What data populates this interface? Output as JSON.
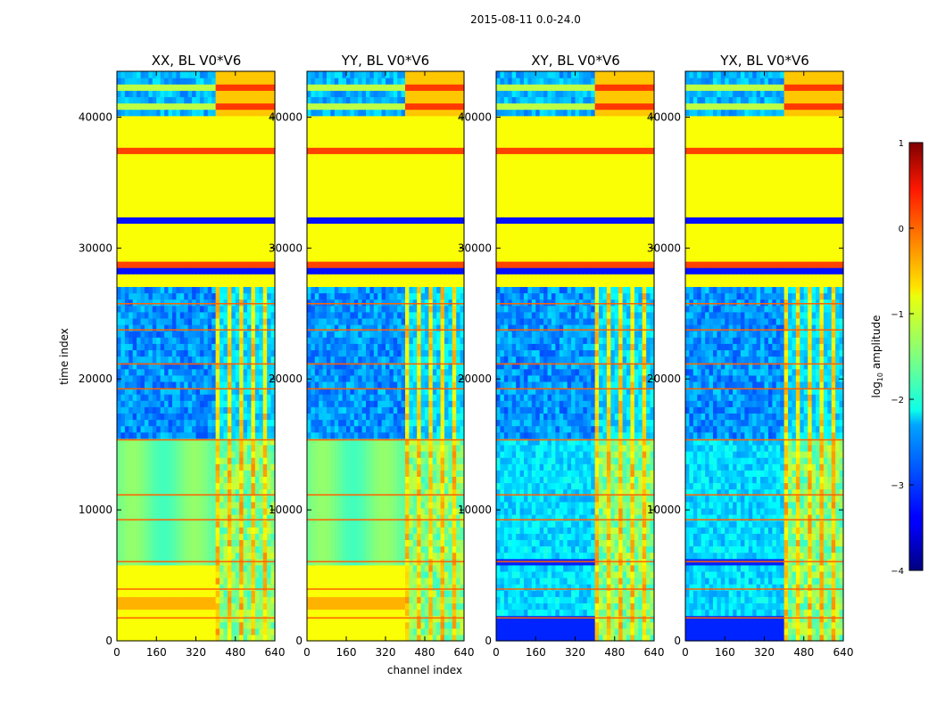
{
  "chart_data": {
    "type": "heatmap",
    "suptitle": "2015-08-11 0.0-24.0",
    "xlabel": "channel index",
    "ylabel": "time index",
    "xlim": [
      0,
      640
    ],
    "ylim": [
      0,
      43500
    ],
    "xticks": [
      "0",
      "160",
      "320",
      "480",
      "640"
    ],
    "xtick_values": [
      0,
      160,
      320,
      480,
      640
    ],
    "yticks": [
      "0",
      "10000",
      "20000",
      "30000",
      "40000"
    ],
    "ytick_values": [
      0,
      10000,
      20000,
      30000,
      40000
    ],
    "panels": [
      {
        "title": "XX, BL V0*V6",
        "polarization": "XX",
        "baseline": "V0*V6"
      },
      {
        "title": "YY, BL V0*V6",
        "polarization": "YY",
        "baseline": "V0*V6"
      },
      {
        "title": "XY, BL V0*V6",
        "polarization": "XY",
        "baseline": "V0*V6"
      },
      {
        "title": "YX, BL V0*V6",
        "polarization": "YX",
        "baseline": "V0*V6"
      }
    ],
    "colorbar": {
      "label": "log10 amplitude",
      "label_main": "log",
      "label_sub": "10",
      "label_rest": " amplitude",
      "range": [
        -4,
        1
      ],
      "ticks": [
        "1",
        "0",
        "−1",
        "−2",
        "−3",
        "−4"
      ],
      "tick_values": [
        1,
        0,
        -1,
        -2,
        -3,
        -4
      ],
      "colormap": "jet"
    },
    "regions": {
      "flagged_blocks_time": [
        [
          27300,
          40000
        ],
        [
          30500,
          33000
        ]
      ],
      "flagged_fill_value": -0.9,
      "noisy_channel_band": [
        400,
        640
      ],
      "strong_background_time": [
        0,
        15300
      ],
      "weak_background_time": [
        15300,
        27300
      ]
    }
  }
}
